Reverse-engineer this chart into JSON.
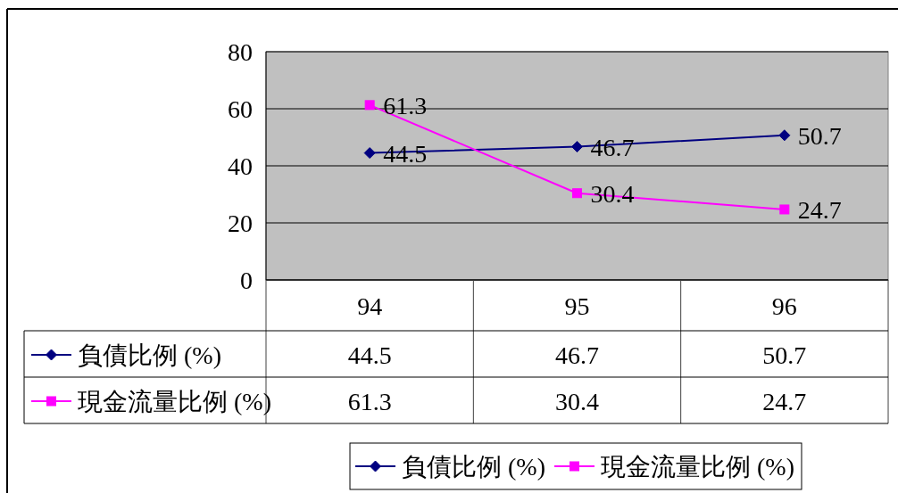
{
  "chart_data": {
    "type": "line",
    "categories": [
      "94",
      "95",
      "96"
    ],
    "series": [
      {
        "name": "負債比例 (%)",
        "color": "#000080",
        "marker": "diamond",
        "values": [
          44.5,
          46.7,
          50.7
        ]
      },
      {
        "name": "現金流量比例 (%)",
        "color": "#ff00ff",
        "marker": "square",
        "values": [
          61.3,
          30.4,
          24.7
        ]
      }
    ],
    "annotations": [
      {
        "text": "44.5",
        "x": "94",
        "y": 44.5
      },
      {
        "text": "46.7",
        "x": "95",
        "y": 46.7
      },
      {
        "text": "50.7",
        "x": "96",
        "y": 50.7
      },
      {
        "text": "61.3",
        "x": "94",
        "y": 61.3
      },
      {
        "text": "30.4",
        "x": "95",
        "y": 30.4
      },
      {
        "text": "24.7",
        "x": "96",
        "y": 24.7
      }
    ],
    "ylim": [
      0,
      80
    ],
    "yticks": [
      0,
      20,
      40,
      60,
      80
    ],
    "grid": "y",
    "data_labels": true,
    "legend": "bottom"
  }
}
